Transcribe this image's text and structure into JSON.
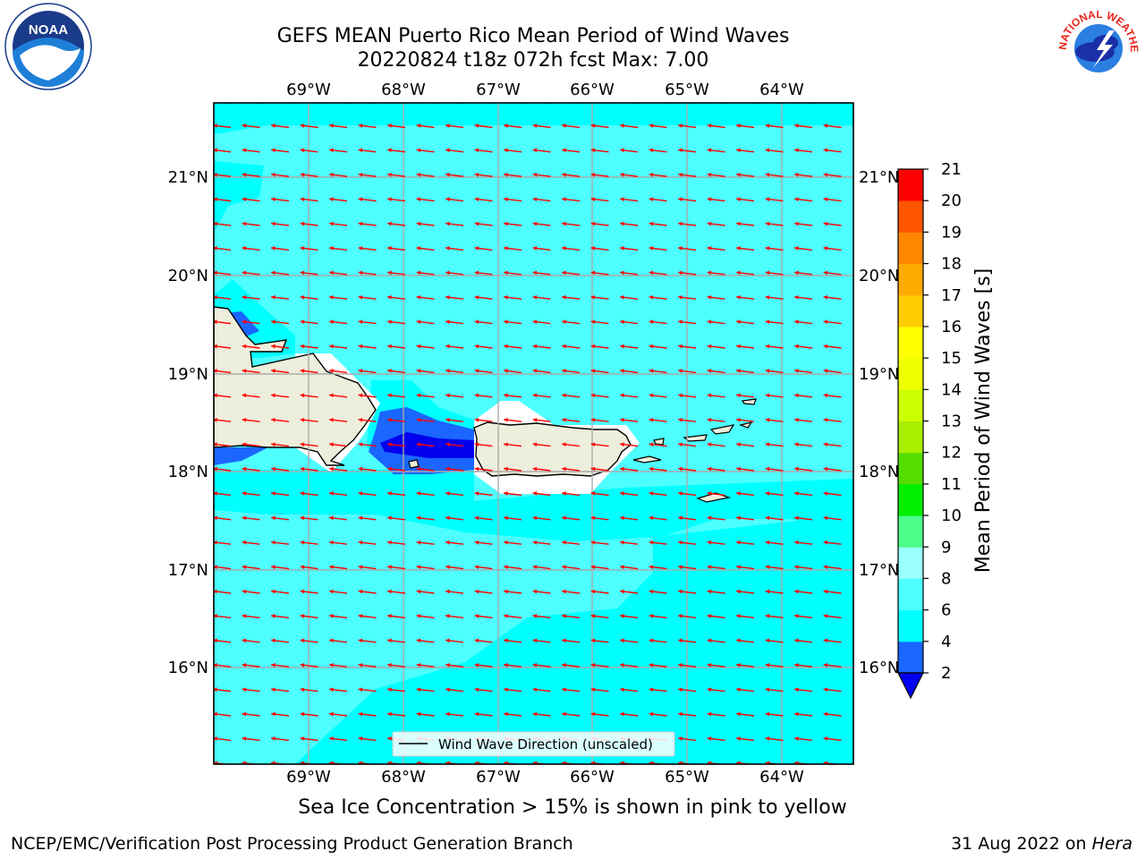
{
  "title_line1": "GEFS MEAN Puerto Rico Mean Period of Wind Waves",
  "title_line2": "20220824 t18z 072h fcst   Max: 7.00",
  "subtitle": "Sea Ice Concentration > 15% is shown in pink to yellow",
  "footer_left": "NCEP/EMC/Verification Post Processing Product Generation Branch",
  "footer_date": "31 Aug 2022 on ",
  "footer_host": "Hera",
  "logos": {
    "left": "NOAA",
    "right_text": "NATIONAL WEATHER SERVICE"
  },
  "map": {
    "lon_labels": [
      "69°W",
      "68°W",
      "67°W",
      "66°W",
      "65°W",
      "64°W"
    ],
    "lat_labels": [
      "21°N",
      "20°N",
      "19°N",
      "18°N",
      "17°N",
      "16°N"
    ],
    "lon_range": [
      -70.0,
      -63.25
    ],
    "lat_range": [
      15.0,
      21.75
    ],
    "legend_label": "Wind Wave Direction (unscaled)",
    "land_color": "#eeeedc",
    "arrow_color": "#ff0000"
  },
  "colorbar": {
    "label": "Mean Period of Wind Waves [s]",
    "ticks": [
      "2",
      "4",
      "6",
      "8",
      "9",
      "10",
      "11",
      "12",
      "13",
      "14",
      "15",
      "16",
      "17",
      "18",
      "19",
      "20",
      "21"
    ],
    "colors": [
      "#1a66ff",
      "#00ffff",
      "#4dffff",
      "#99ffff",
      "#4dff88",
      "#00ee00",
      "#55dd00",
      "#aaee00",
      "#ccff00",
      "#eeff00",
      "#ffff00",
      "#ffcc00",
      "#ffaa00",
      "#ff8800",
      "#ff5500",
      "#ff2200",
      "#ff0000"
    ],
    "under_color": "#0000ee"
  }
}
